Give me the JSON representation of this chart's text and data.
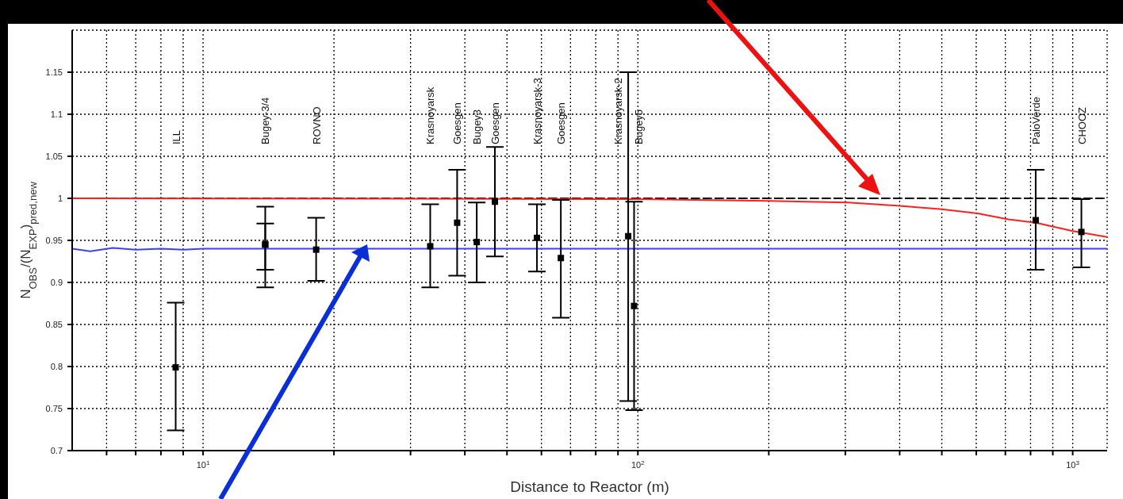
{
  "chart_data": {
    "type": "scatter",
    "xlabel": "Distance to Reactor (m)",
    "ylabel": "N$_{OBS}$/(N$_{EXP}$)$_{pred,new}$",
    "log": "x",
    "grid": true,
    "marker": "square",
    "xlim": [
      5,
      1200
    ],
    "ylim": [
      0.7,
      1.2
    ],
    "xticks": [
      {
        "value": 6,
        "label": null
      },
      {
        "value": 7,
        "label": null
      },
      {
        "value": 8,
        "label": null
      },
      {
        "value": 9,
        "label": null
      },
      {
        "value": 10,
        "label": "10$^{1}$"
      },
      {
        "value": 20,
        "label": null
      },
      {
        "value": 30,
        "label": null
      },
      {
        "value": 40,
        "label": null
      },
      {
        "value": 50,
        "label": null
      },
      {
        "value": 60,
        "label": null
      },
      {
        "value": 70,
        "label": null
      },
      {
        "value": 80,
        "label": null
      },
      {
        "value": 90,
        "label": null
      },
      {
        "value": 100,
        "label": "10$^{2}$"
      },
      {
        "value": 200,
        "label": null
      },
      {
        "value": 300,
        "label": null
      },
      {
        "value": 400,
        "label": null
      },
      {
        "value": 500,
        "label": null
      },
      {
        "value": 600,
        "label": null
      },
      {
        "value": 700,
        "label": null
      },
      {
        "value": 800,
        "label": null
      },
      {
        "value": 900,
        "label": null
      },
      {
        "value": 1000,
        "label": "10$^{3}$"
      }
    ],
    "yticks": [
      0.7,
      0.75,
      0.8,
      0.85,
      0.9,
      0.95,
      1,
      1.05,
      1.1,
      1.15
    ],
    "series": [
      {
        "type": "line",
        "color": "#3f3fff",
        "marker": "none",
        "x": [
          5,
          5.5,
          6.2,
          7,
          8,
          9,
          10,
          20,
          50,
          100,
          300,
          1200
        ],
        "values": [
          0.94,
          0.937,
          0.941,
          0.939,
          0.94,
          0.939,
          0.94,
          0.94,
          0.94,
          0.94,
          0.94,
          0.94
        ]
      },
      {
        "type": "line",
        "color": "#ff2020",
        "marker": "none",
        "x": [
          5,
          100,
          200,
          304,
          400,
          500,
          604,
          711,
          822,
          1000,
          1200
        ],
        "values": [
          1,
          0.999,
          0.997,
          0.995,
          0.991,
          0.987,
          0.982,
          0.975,
          0.971,
          0.961,
          0.954
        ]
      },
      {
        "color": "#000000",
        "x": [
          8.65,
          13.9,
          18.2,
          33.3,
          38.4,
          42.6,
          46.9,
          58.6,
          66.5,
          95,
          98,
          822,
          1047
        ],
        "values": [
          0.799,
          0.945,
          0.939,
          0.943,
          0.971,
          0.948,
          0.996,
          0.953,
          0.929,
          0.955,
          0.872,
          0.974,
          0.96
        ],
        "errors": [
          [
            0.724,
            0.876
          ],
          [
            0.894,
            0.99
          ],
          [
            0.902,
            0.977
          ],
          [
            0.894,
            0.993
          ],
          [
            0.908,
            1.034
          ],
          [
            0.9,
            0.995
          ],
          [
            0.931,
            1.061
          ],
          [
            0.913,
            0.993
          ],
          [
            0.858,
            0.998
          ],
          [
            0.759,
            1.15
          ],
          [
            0.748,
            0.996
          ],
          [
            0.915,
            1.034
          ],
          [
            0.918,
            0.999
          ]
        ]
      },
      {
        "color": "#000000",
        "x": [
          13.9
        ],
        "values": [
          0.945
        ],
        "errors": [
          [
            0.915,
            0.97
          ]
        ]
      }
    ],
    "ref_lines": [
      {
        "axis": "y",
        "value": 1,
        "color": "#000000",
        "line_style": "dashed"
      }
    ],
    "annotations": [
      "ILL",
      "Bugey-3/4",
      "ROVNO",
      "Krasnoyarsk",
      "Goesgen",
      "Bugey3",
      "Goesgen",
      "Krasnoyarsk-3",
      "Goesgen",
      "Krasnoyarsk-2",
      "Bugey5",
      "PaloVerde",
      "CHOOZ"
    ]
  }
}
